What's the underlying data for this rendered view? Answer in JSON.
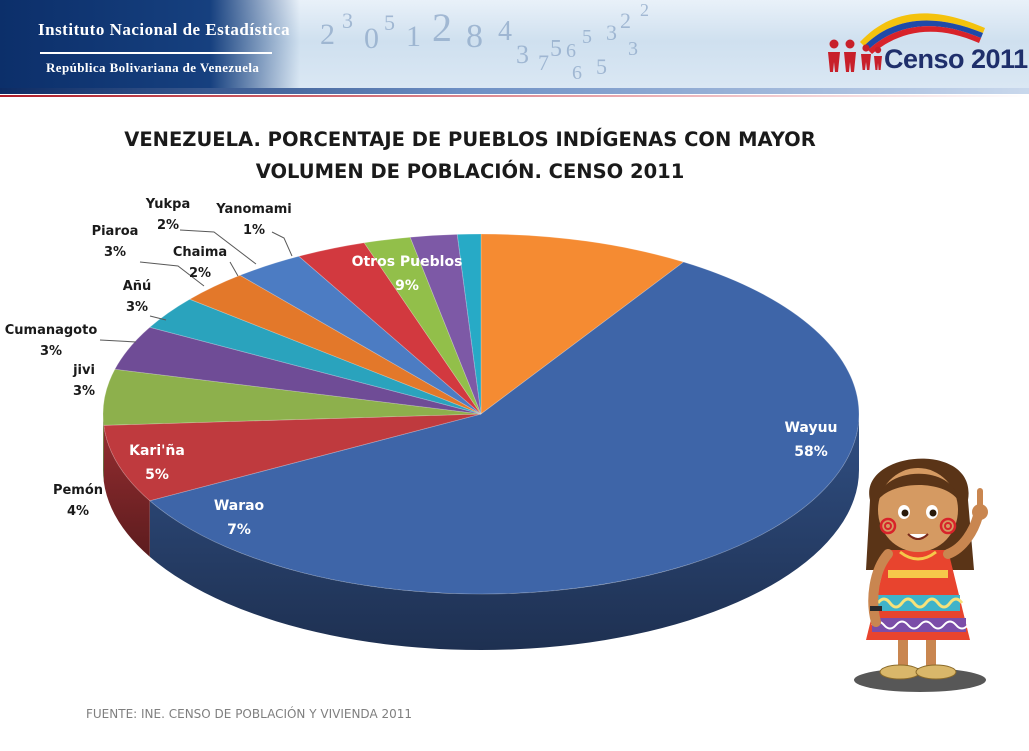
{
  "header": {
    "institute_name": "Instituto Nacional de Estadística",
    "institute_country": "República Bolivariana de Venezuela",
    "census_logo_text": "Censo 2011",
    "decorative_digits": [
      "2",
      "3",
      "0",
      "5",
      "1",
      "2",
      "8",
      "4",
      "3",
      "7",
      "6",
      "5",
      "3",
      "2",
      "2",
      "3",
      "5",
      "6",
      "5"
    ]
  },
  "chart_data": {
    "type": "pie",
    "style": "3d",
    "title_lines": [
      "VENEZUELA. PORCENTAJE DE PUEBLOS INDÍGENAS CON MAYOR",
      "VOLUMEN DE POBLACIÓN. CENSO 2011"
    ],
    "unit": "%",
    "slices": [
      {
        "label": "Otros Pueblos",
        "value": 9,
        "display": "9%",
        "color": "#f58b32",
        "label_inside": true
      },
      {
        "label": "Wayuu",
        "value": 58,
        "display": "58%",
        "color": "#3e65a8",
        "label_inside": true
      },
      {
        "label": "Warao",
        "value": 7,
        "display": "7%",
        "color": "#bf3a3e",
        "label_inside": true
      },
      {
        "label": "Kari'ña",
        "value": 5,
        "display": "5%",
        "color": "#8db04c",
        "label_inside": true
      },
      {
        "label": "Pemón",
        "value": 4,
        "display": "4%",
        "color": "#6f4c96",
        "label_inside": false
      },
      {
        "label": "jivi",
        "value": 3,
        "display": "3%",
        "color": "#2aa3bd",
        "label_inside": false
      },
      {
        "label": "Cumanagoto",
        "value": 3,
        "display": "3%",
        "color": "#e3782a",
        "label_inside": false
      },
      {
        "label": "Añú",
        "value": 3,
        "display": "3%",
        "color": "#4c7cc3",
        "label_inside": false
      },
      {
        "label": "Piaroa",
        "value": 3,
        "display": "3%",
        "color": "#d2393f",
        "label_inside": false
      },
      {
        "label": "Chaima",
        "value": 2,
        "display": "2%",
        "color": "#92bf4a",
        "label_inside": false
      },
      {
        "label": "Yukpa",
        "value": 2,
        "display": "2%",
        "color": "#7d59a6",
        "label_inside": false
      },
      {
        "label": "Yanomami",
        "value": 1,
        "display": "1%",
        "color": "#27aac6",
        "label_inside": false
      }
    ]
  },
  "footer": {
    "source": "FUENTE: INE. CENSO DE POBLACIÓN Y VIVIENDA  2011"
  }
}
